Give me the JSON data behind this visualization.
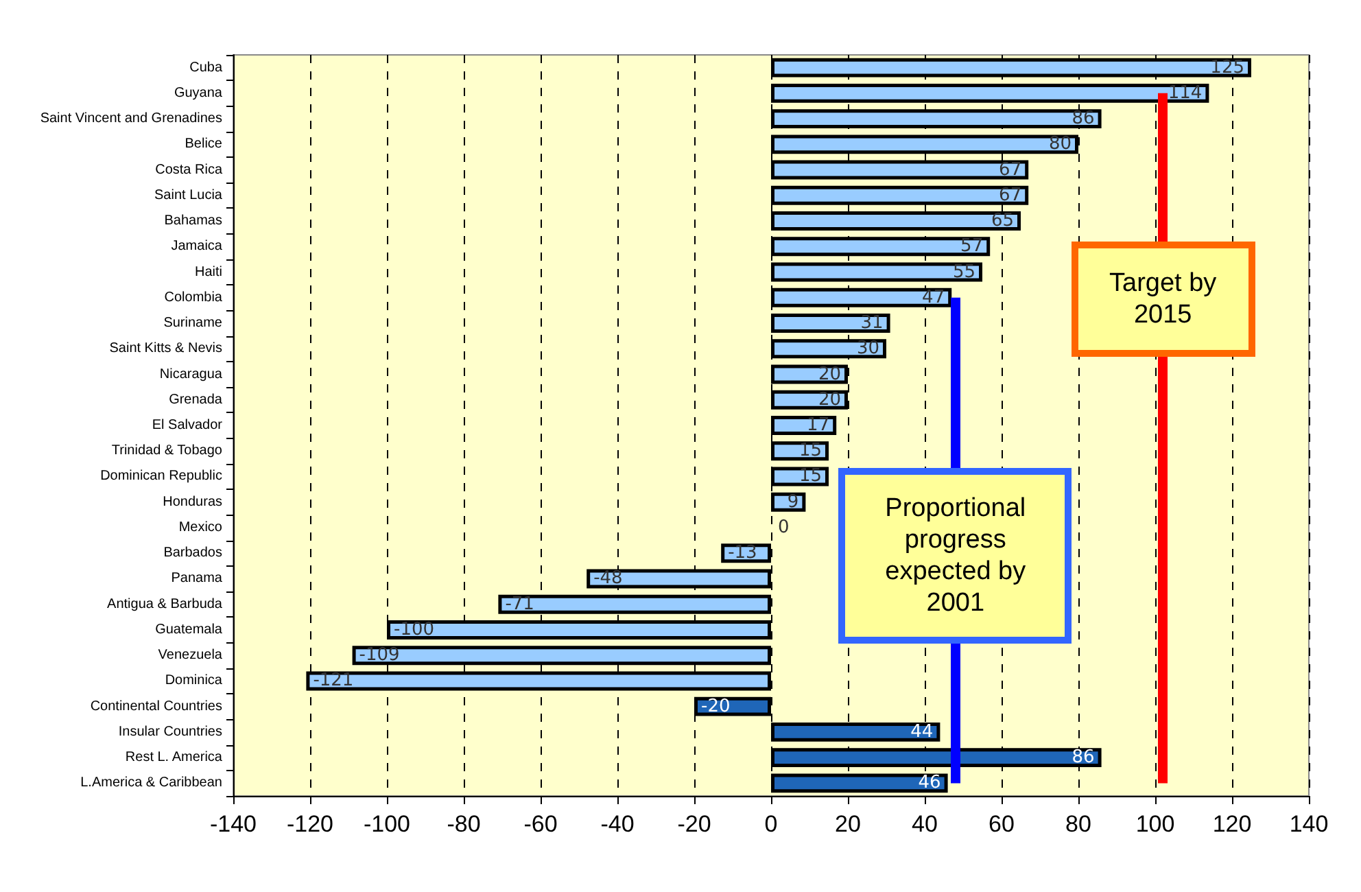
{
  "chart_data": {
    "type": "bar",
    "orientation": "horizontal",
    "categories": [
      "Cuba",
      "Guyana",
      "Saint Vincent and Grenadines",
      "Belice",
      "Costa Rica",
      "Saint Lucia",
      "Bahamas",
      "Jamaica",
      "Haiti",
      "Colombia",
      "Suriname",
      "Saint Kitts & Nevis",
      "Nicaragua",
      "Grenada",
      "El Salvador",
      "Trinidad & Tobago",
      "Dominican Republic",
      "Honduras",
      "Mexico",
      "Barbados",
      "Panama",
      "Antigua & Barbuda",
      "Guatemala",
      "Venezuela",
      "Dominica",
      "Continental Countries",
      "Insular Countries",
      "Rest L. America",
      "L.America & Caribbean"
    ],
    "values": [
      125,
      114,
      86,
      80,
      67,
      67,
      65,
      57,
      55,
      47,
      31,
      30,
      20,
      20,
      17,
      15,
      15,
      9,
      0,
      -13,
      -48,
      -71,
      -100,
      -109,
      -121,
      -20,
      44,
      86,
      46
    ],
    "colors": [
      "#99ccff",
      "#99ccff",
      "#99ccff",
      "#99ccff",
      "#99ccff",
      "#99ccff",
      "#99ccff",
      "#99ccff",
      "#99ccff",
      "#99ccff",
      "#99ccff",
      "#99ccff",
      "#99ccff",
      "#99ccff",
      "#99ccff",
      "#99ccff",
      "#99ccff",
      "#99ccff",
      "#99ccff",
      "#99ccff",
      "#99ccff",
      "#99ccff",
      "#99ccff",
      "#99ccff",
      "#99ccff",
      "#1f66b8",
      "#1f66b8",
      "#1f66b8",
      "#1f66b8"
    ],
    "data_labels": true,
    "xlim": [
      -140,
      140
    ],
    "xticks": [
      -140,
      -120,
      -100,
      -80,
      -60,
      -40,
      -20,
      0,
      20,
      40,
      60,
      80,
      100,
      120,
      140
    ],
    "grid": "x",
    "ref_lines": [
      {
        "axis": "x",
        "value": 102,
        "label": "Target by 2015",
        "color": "#ff0000"
      },
      {
        "axis": "x",
        "value": 48,
        "label": "Proportional progress expected by 2001",
        "color": "#0000ff"
      }
    ]
  }
}
